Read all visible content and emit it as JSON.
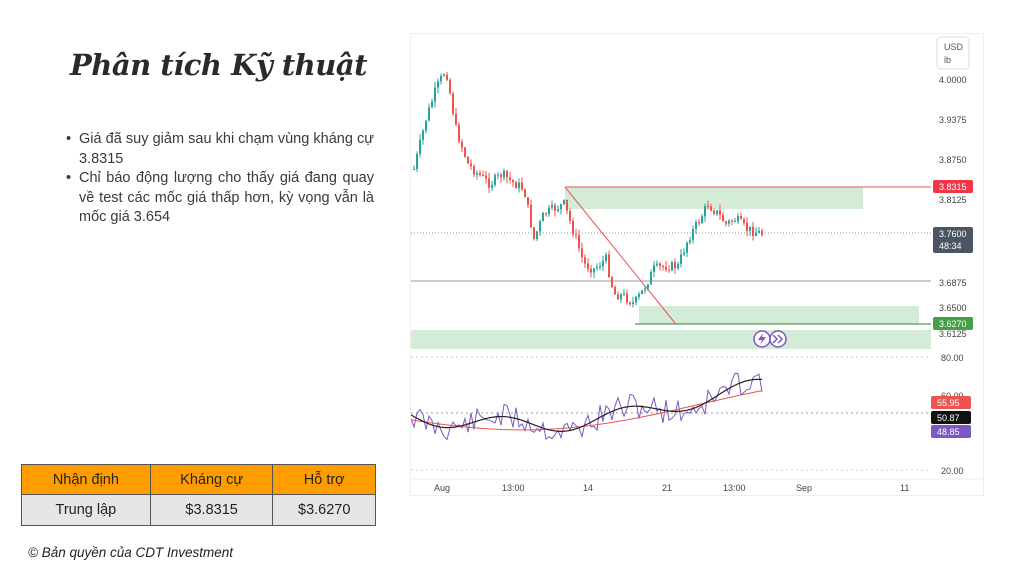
{
  "slide": {
    "title": "Phân tích Kỹ thuật",
    "bullets": [
      "Giá đã suy giảm sau khi chạm vùng kháng cự 3.8315",
      "Chỉ báo động lượng cho thấy giá đang quay về test các mốc giá thấp hơn, kỳ vọng vẫn là mốc giá 3.654"
    ],
    "table": {
      "headers": [
        "Nhận định",
        "Kháng cự",
        "Hỗ trợ"
      ],
      "row": [
        "Trung lập",
        "$3.8315",
        "$3.6270"
      ]
    },
    "copyright": "© Bản quyền của CDT Investment"
  },
  "chart_panel": {
    "currency": "USD",
    "unit": "lb",
    "price_ticks": [
      "4.0000",
      "3.9375",
      "3.8750",
      "3.8125",
      "3.6875",
      "3.6500",
      "3.6125"
    ],
    "price_tags": {
      "resistance": "3.8315",
      "current": "3.7600",
      "countdown": "48:34",
      "support": "3.6270"
    },
    "osc_ticks": [
      "80.00",
      "60.00",
      "20.00"
    ],
    "osc_tags": [
      "55.95",
      "50.87",
      "48.85"
    ],
    "x_ticks": [
      "Aug",
      "13:00",
      "14",
      "21",
      "13:00",
      "Sep",
      "11"
    ],
    "colors": {
      "up": "#26a69a",
      "down": "#ef5350",
      "zone": "#d4ecd7",
      "resistance_tag": "#f23645",
      "support_tag": "#43a047",
      "current_tag": "#4b5563",
      "osc_fast": "#7e57c2",
      "osc_mid": "#222222",
      "osc_slow": "#ef5350"
    }
  }
}
